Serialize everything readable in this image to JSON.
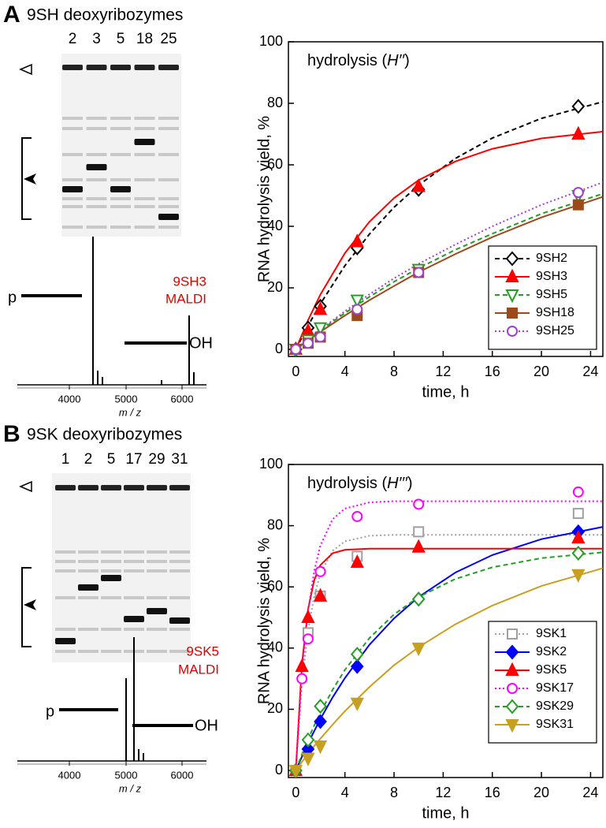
{
  "chart_data": [
    {
      "type": "line",
      "panel": "A",
      "annotation": [
        "hydrolysis (",
        "H′′",
        ")"
      ],
      "x_label": "time, h",
      "y_label": "RNA hydrolysis yield, %",
      "xlim": [
        -0.6,
        25
      ],
      "ylim": [
        -2.3,
        100
      ],
      "xticks": [
        0,
        4,
        8,
        12,
        16,
        20,
        24
      ],
      "yticks": [
        0,
        20,
        40,
        60,
        80,
        100
      ],
      "legend": "lower right",
      "fit_x": [
        0,
        1,
        2,
        4,
        6,
        8,
        10,
        13,
        16,
        20,
        25
      ],
      "series": [
        {
          "name": "9SH2",
          "color": "#000000",
          "dash": "dashed",
          "marker": "diamond",
          "filled": false,
          "x": [
            0,
            1,
            2,
            5,
            10,
            23
          ],
          "values": [
            0,
            7,
            14,
            33,
            52,
            79
          ],
          "fit_values": [
            0,
            7.7,
            14.8,
            27.2,
            37.5,
            46.2,
            53.4,
            62.1,
            68.7,
            75.1,
            80.5
          ]
        },
        {
          "name": "9SH3",
          "color": "#ff0000",
          "dash": "solid",
          "marker": "triangle-up",
          "filled": true,
          "x": [
            0,
            1,
            2,
            5,
            10,
            23
          ],
          "values": [
            0,
            6,
            13,
            35,
            53,
            70
          ],
          "fit_values": [
            0,
            9.5,
            17.8,
            31.3,
            41.5,
            49.2,
            55,
            61.1,
            65.2,
            68.6,
            70.8
          ]
        },
        {
          "name": "9SH5",
          "color": "#22a022",
          "dash": "dashed",
          "marker": "triangle-down",
          "filled": false,
          "x": [
            0,
            1,
            2,
            5,
            10,
            23
          ],
          "values": [
            0,
            3,
            7,
            16,
            26,
            50
          ],
          "fit_values": [
            0,
            3.1,
            6.2,
            11.8,
            17.1,
            22.0,
            26.4,
            32.4,
            37.6,
            44.1,
            50.6
          ]
        },
        {
          "name": "9SH18",
          "color": "#9c4a1a",
          "dash": "solid",
          "marker": "square",
          "filled": true,
          "x": [
            0,
            1,
            2,
            5,
            10,
            23
          ],
          "values": [
            0,
            2,
            4,
            11,
            25,
            47
          ],
          "fit_values": [
            0,
            2.9,
            5.7,
            11.0,
            16.0,
            20.6,
            25.1,
            31.0,
            36.5,
            42.9,
            49.6
          ]
        },
        {
          "name": "9SH25",
          "color": "#a040d0",
          "dash": "dotted",
          "marker": "circle",
          "filled": false,
          "x": [
            0,
            1,
            2,
            5,
            10,
            23
          ],
          "values": [
            0,
            2,
            4,
            13,
            25,
            51
          ],
          "fit_values": [
            0,
            3.3,
            6.4,
            12.4,
            17.9,
            23.1,
            27.8,
            34.1,
            40.0,
            47.0,
            54.3
          ]
        }
      ]
    },
    {
      "type": "line",
      "panel": "B",
      "annotation": [
        "hydrolysis (",
        "H′′′",
        ")"
      ],
      "x_label": "time, h",
      "y_label": "RNA hydrolysis yield, %",
      "xlim": [
        -0.6,
        25
      ],
      "ylim": [
        -2.3,
        100
      ],
      "xticks": [
        0,
        4,
        8,
        12,
        16,
        20,
        24
      ],
      "yticks": [
        0,
        20,
        40,
        60,
        80,
        100
      ],
      "legend": "lower right",
      "fit_x": [
        0,
        0.5,
        1,
        1.5,
        2,
        3,
        4,
        6,
        8,
        10,
        13,
        16,
        20,
        25
      ],
      "series": [
        {
          "name": "9SK1",
          "color": "#a0a0a0",
          "dash": "dotted",
          "marker": "square",
          "filled": false,
          "x": [
            0,
            1,
            2,
            5,
            10,
            23
          ],
          "values": [
            0,
            45,
            57,
            70,
            78,
            84
          ],
          "fit_values": [
            0,
            27.9,
            45.7,
            57.0,
            64.3,
            71.8,
            74.9,
            76.7,
            77,
            77,
            77,
            77,
            77,
            77
          ]
        },
        {
          "name": "9SK2",
          "color": "#0000ff",
          "dash": "solid",
          "marker": "diamond",
          "filled": true,
          "x": [
            0,
            1,
            2,
            5,
            10,
            23
          ],
          "values": [
            0,
            7,
            16,
            34,
            56,
            78
          ],
          "fit_values": [
            0,
            4.5,
            8.9,
            12.9,
            16.8,
            23.9,
            30.2,
            41.1,
            49.7,
            56.7,
            64.7,
            70.4,
            75.6,
            79.6
          ]
        },
        {
          "name": "9SK5",
          "color": "#ff0000",
          "dash": "solid",
          "marker": "triangle-up",
          "filled": true,
          "x": [
            0,
            0.5,
            1,
            2,
            5,
            10,
            23
          ],
          "values": [
            0,
            34,
            50,
            57,
            68,
            73,
            76
          ],
          "fit_values": [
            0,
            34.7,
            52.7,
            62.2,
            67.1,
            71,
            72.1,
            72.5,
            72.5,
            72.5,
            72.5,
            72.5,
            72.5,
            72.5
          ]
        },
        {
          "name": "9SK17",
          "color": "#ff00ff",
          "dash": "dotted",
          "marker": "circle",
          "filled": false,
          "x": [
            0,
            0.5,
            1,
            2,
            5,
            10,
            23
          ],
          "values": [
            0,
            30,
            43,
            65,
            83,
            87,
            91
          ],
          "fit_values": [
            0,
            31.9,
            52.2,
            65.2,
            73.5,
            82.1,
            85.6,
            87.6,
            88,
            88,
            88,
            88,
            88,
            88
          ]
        },
        {
          "name": "9SK29",
          "color": "#22a022",
          "dash": "dashed",
          "marker": "diamond",
          "filled": false,
          "x": [
            0,
            1,
            2,
            5,
            10,
            23
          ],
          "values": [
            0,
            10,
            21,
            38,
            56,
            71
          ],
          "fit_values": [
            0,
            5.3,
            10.2,
            14.7,
            18.9,
            26.4,
            32.9,
            43.3,
            51.0,
            56.7,
            62.6,
            66.4,
            69.4,
            71.3
          ]
        },
        {
          "name": "9SK31",
          "color": "#c8a020",
          "dash": "solid",
          "marker": "triangle-down",
          "filled": true,
          "x": [
            0,
            1,
            2,
            5,
            10,
            23
          ],
          "values": [
            0,
            4,
            8,
            22,
            40,
            64
          ],
          "fit_values": [
            0,
            2.8,
            5.4,
            8.0,
            10.4,
            15.0,
            19.4,
            27.3,
            34.4,
            40.3,
            47.8,
            53.9,
            60.3,
            66.1
          ]
        }
      ]
    }
  ],
  "gels": [
    {
      "title": "9SH deoxyribozymes",
      "lanes": [
        "2",
        "3",
        "5",
        "18",
        "25"
      ],
      "ms": {
        "sample": "9SH3",
        "method": "MALDI",
        "left": "p",
        "right": "OH",
        "ticks": [
          "4000",
          "5000",
          "6000"
        ],
        "axis": "m / z"
      }
    },
    {
      "title": "9SK deoxyribozymes",
      "lanes": [
        "1",
        "2",
        "5",
        "17",
        "29",
        "31"
      ],
      "ms": {
        "sample": "9SK5",
        "method": "MALDI",
        "left": "p",
        "right": "OH",
        "ticks": [
          "4000",
          "5000",
          "6000"
        ],
        "axis": "m / z"
      }
    }
  ]
}
